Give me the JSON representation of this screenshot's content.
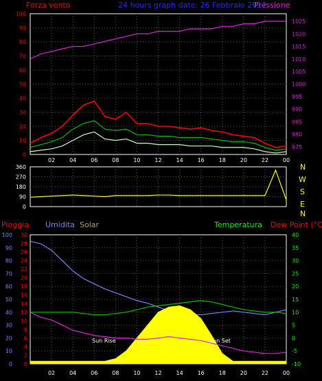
{
  "colors": {
    "background": "#000000",
    "frame": "#ffffff",
    "grid": "#5a5a5a",
    "red": "#ff0000",
    "blue": "#2a2aff",
    "magenta": "#e020e0",
    "green": "#00c000",
    "lightgreen": "#c8ffc8",
    "yellow": "#ffff00",
    "periwinkle": "#8080ff",
    "olive": "#b0a060",
    "brightgreen": "#00ff00"
  },
  "header": {
    "left": "Forza vento",
    "center": "24 hours graph date: 26 Febbraio 2017",
    "right": "Pressione"
  },
  "panel3_header": {
    "pioggia": "Pioggia",
    "umidita": "Umidita",
    "solar": "Solar",
    "temperatura": "Temperatura",
    "dewpoint": "Dew Point (°C)"
  },
  "compass": [
    "N",
    "W",
    "S",
    "E",
    "N"
  ],
  "annotations": {
    "sunrise": "Sun Rise",
    "sunset": "Sun Set"
  },
  "x_ticks": [
    "02",
    "04",
    "06",
    "08",
    "10",
    "12",
    "14",
    "16",
    "18",
    "20",
    "22",
    "00"
  ],
  "chart_data": [
    {
      "type": "line",
      "name": "wind-pressure",
      "title": "24 hours graph date: 26 Febbraio 2017",
      "x": [
        0,
        1,
        2,
        3,
        4,
        5,
        6,
        7,
        8,
        9,
        10,
        11,
        12,
        13,
        14,
        15,
        16,
        17,
        18,
        19,
        20,
        21,
        22,
        23,
        24
      ],
      "left_axis": {
        "ylim": [
          0,
          100
        ],
        "ticks": [
          "0",
          "10",
          "20",
          "30",
          "40",
          "50",
          "60",
          "70",
          "80",
          "90",
          "100"
        ]
      },
      "right_axis": {
        "ylim": [
          972,
          1028
        ],
        "ticks": [
          "975",
          "980",
          "985",
          "990",
          "995",
          "1000",
          "1005",
          "1010",
          "1015",
          "1020",
          "1025"
        ]
      },
      "series": [
        {
          "name": "Forza vento",
          "axis": "left",
          "color": "red",
          "values": [
            8,
            12,
            15,
            20,
            28,
            35,
            38,
            27,
            25,
            30,
            22,
            22,
            20,
            20,
            19,
            18,
            19,
            17,
            16,
            14,
            13,
            12,
            8,
            5,
            6
          ]
        },
        {
          "name": "gust-avg",
          "axis": "left",
          "color": "green",
          "values": [
            5,
            7,
            9,
            12,
            18,
            22,
            24,
            18,
            17,
            18,
            14,
            14,
            13,
            13,
            12,
            12,
            12,
            11,
            10,
            9,
            9,
            8,
            5,
            3,
            4
          ]
        },
        {
          "name": "wind-avg",
          "axis": "left",
          "color": "lightgreen",
          "values": [
            2,
            3,
            4,
            6,
            10,
            14,
            16,
            11,
            10,
            11,
            8,
            8,
            7,
            7,
            7,
            6,
            6,
            6,
            5,
            5,
            5,
            4,
            2,
            1,
            2
          ]
        },
        {
          "name": "Pressione",
          "axis": "right",
          "color": "magenta",
          "values": [
            1010,
            1012,
            1013,
            1014,
            1015,
            1015,
            1016,
            1017,
            1018,
            1019,
            1020,
            1020,
            1021,
            1021,
            1021,
            1022,
            1022,
            1022,
            1023,
            1023,
            1024,
            1024,
            1025,
            1025,
            1025
          ]
        }
      ]
    },
    {
      "type": "line",
      "name": "wind-direction",
      "x": [
        0,
        1,
        2,
        3,
        4,
        5,
        6,
        7,
        8,
        9,
        10,
        11,
        12,
        13,
        14,
        15,
        16,
        17,
        18,
        19,
        20,
        21,
        22,
        23,
        24
      ],
      "ylim": [
        0,
        360
      ],
      "ticks": [
        "0",
        "90",
        "180",
        "270",
        "360"
      ],
      "series": [
        {
          "name": "direction",
          "color": "yellow",
          "values": [
            85,
            90,
            95,
            100,
            105,
            100,
            95,
            90,
            100,
            100,
            100,
            100,
            105,
            105,
            100,
            100,
            100,
            100,
            100,
            100,
            100,
            100,
            100,
            330,
            60
          ]
        }
      ]
    },
    {
      "type": "area",
      "name": "rain-humidity-temp",
      "x": [
        0,
        1,
        2,
        3,
        4,
        5,
        6,
        7,
        8,
        9,
        10,
        11,
        12,
        13,
        14,
        15,
        16,
        17,
        18,
        19,
        20,
        21,
        22,
        23,
        24
      ],
      "left_axis_rain": {
        "ylim": [
          0,
          30
        ],
        "ticks": [
          "0",
          "2",
          "4",
          "6",
          "8",
          "10",
          "12",
          "14",
          "16",
          "18",
          "20",
          "22",
          "24",
          "26",
          "28",
          "30"
        ]
      },
      "left_axis_humidity": {
        "ylim": [
          0,
          100
        ],
        "ticks": [
          "0",
          "10",
          "20",
          "30",
          "40",
          "50",
          "60",
          "70",
          "80",
          "90",
          "100"
        ]
      },
      "right_axis_temp": {
        "ylim": [
          -10,
          40
        ],
        "ticks": [
          "-10",
          "-5",
          "0",
          "5",
          "10",
          "15",
          "20",
          "25",
          "30",
          "35",
          "40"
        ]
      },
      "series": [
        {
          "name": "Umidita",
          "color": "periwinkle",
          "values": [
            95,
            93,
            88,
            80,
            72,
            66,
            62,
            58,
            55,
            52,
            49,
            47,
            44,
            41,
            39,
            38,
            38,
            39,
            40,
            41,
            40,
            39,
            38,
            40,
            42
          ]
        },
        {
          "name": "Solar",
          "color": "yellow",
          "fill": true,
          "values": [
            2,
            2,
            2,
            2,
            2,
            2,
            2,
            2,
            4,
            10,
            20,
            30,
            40,
            44,
            45,
            42,
            35,
            22,
            8,
            2,
            2,
            2,
            2,
            2,
            2
          ]
        },
        {
          "name": "Temperatura",
          "color": "green",
          "values": [
            10,
            10,
            10,
            10,
            10,
            9.5,
            9,
            9,
            9.5,
            10,
            11,
            12,
            12.5,
            13,
            13.5,
            14,
            14.5,
            14,
            13,
            12,
            11,
            10.5,
            10,
            10,
            9.5
          ]
        },
        {
          "name": "Dew Point (°C)",
          "color": "magenta",
          "values": [
            10,
            8,
            7,
            5,
            3,
            2,
            1,
            0.5,
            0,
            0,
            -0.5,
            -0.5,
            0,
            0.5,
            0,
            -0.5,
            -1,
            -2,
            -3,
            -4,
            -5,
            -5.5,
            -6,
            -6,
            -5.5
          ]
        }
      ]
    }
  ]
}
